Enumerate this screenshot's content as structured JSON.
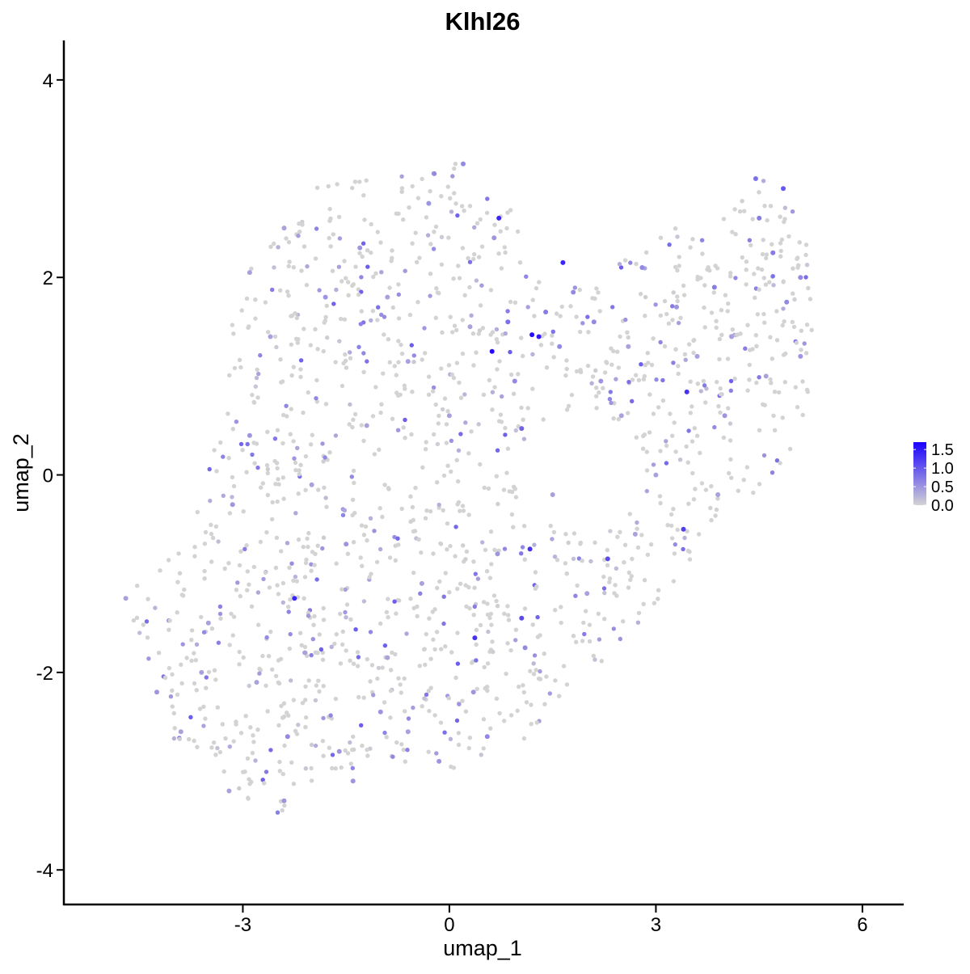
{
  "chart_data": {
    "type": "scatter",
    "title": "Klhl26",
    "xlabel": "umap_1",
    "ylabel": "umap_2",
    "xlim": [
      -5.6,
      6.6
    ],
    "ylim": [
      -4.35,
      4.4
    ],
    "xticks": [
      -3,
      0,
      3,
      6
    ],
    "xtick_labels": [
      "-3",
      "0",
      "3",
      "6"
    ],
    "yticks": [
      -4,
      -2,
      0,
      2,
      4
    ],
    "ytick_labels": [
      "-4",
      "-2",
      "0",
      "2",
      "4"
    ],
    "grid": false,
    "legend": {
      "placement": "right",
      "type": "colorbar",
      "title": "",
      "labels": [
        "1.5",
        "1.0",
        "0.5",
        "0.0"
      ],
      "values": [
        1.5,
        1.0,
        0.5,
        0.0
      ],
      "range": [
        0.0,
        1.7
      ],
      "color_low": "#d3d3d3",
      "color_high": "#1a00ff"
    },
    "points": [
      [
        0.2,
        3.15,
        0.6
      ],
      [
        -0.22,
        3.05,
        0.6
      ],
      [
        0.72,
        2.6,
        1.4
      ],
      [
        1.65,
        2.15,
        1.4
      ],
      [
        0.62,
        1.25,
        1.6
      ],
      [
        1.2,
        1.42,
        1.6
      ],
      [
        1.3,
        1.4,
        1.5
      ],
      [
        3.45,
        0.84,
        1.3
      ],
      [
        3.4,
        -0.55,
        1.2
      ],
      [
        1.17,
        -0.75,
        1.3
      ],
      [
        -2.25,
        -1.25,
        1.4
      ],
      [
        0.37,
        -1.65,
        1.3
      ],
      [
        1.05,
        -1.45,
        1.1
      ],
      [
        2.3,
        -0.85,
        1.1
      ],
      [
        4.45,
        3.0,
        0.8
      ],
      [
        4.85,
        2.9,
        1.0
      ],
      [
        4.7,
        2.25,
        0.7
      ],
      [
        5.1,
        2.0,
        0.6
      ],
      [
        4.9,
        1.75,
        0.6
      ],
      [
        4.5,
        2.6,
        0.7
      ],
      [
        3.85,
        1.9,
        0.7
      ],
      [
        2.1,
        1.55,
        0.6
      ],
      [
        0.85,
        1.55,
        0.8
      ],
      [
        0.95,
        0.95,
        0.6
      ],
      [
        1.05,
        0.47,
        0.9
      ],
      [
        -3.15,
        -0.3,
        0.5
      ],
      [
        -2.9,
        0.4,
        0.5
      ],
      [
        -2.35,
        -2.65,
        0.6
      ],
      [
        -2.4,
        -3.3,
        0.5
      ],
      [
        -1.4,
        -3.1,
        0.5
      ],
      [
        -4.7,
        -1.25,
        0.4
      ],
      [
        -4.25,
        -2.2,
        0.5
      ],
      [
        -3.2,
        -3.2,
        0.4
      ],
      [
        -0.15,
        -2.9,
        0.5
      ],
      [
        0.55,
        -2.65,
        0.6
      ],
      [
        1.4,
        1.65,
        0.7
      ],
      [
        1.6,
        1.3,
        0.6
      ],
      [
        1.8,
        1.85,
        0.6
      ],
      [
        2.8,
        2.1,
        0.6
      ],
      [
        3.3,
        1.7,
        0.5
      ],
      [
        -1.8,
        1.8,
        0.5
      ],
      [
        -2.4,
        2.5,
        0.4
      ],
      [
        -0.3,
        2.75,
        0.5
      ],
      [
        0.65,
        2.4,
        0.5
      ],
      [
        -0.6,
        1.15,
        0.4
      ],
      [
        0.0,
        0.6,
        0.4
      ],
      [
        -1.2,
        0.5,
        0.4
      ],
      [
        -2.0,
        -0.1,
        0.4
      ],
      [
        -1.5,
        -0.7,
        0.5
      ],
      [
        -0.4,
        -1.1,
        0.4
      ],
      [
        0.7,
        -0.8,
        0.5
      ],
      [
        1.5,
        -0.2,
        0.4
      ],
      [
        2.5,
        0.6,
        0.4
      ],
      [
        3.0,
        0.0,
        0.4
      ],
      [
        4.0,
        0.6,
        0.5
      ],
      [
        4.6,
        1.0,
        0.4
      ],
      [
        5.1,
        1.2,
        0.5
      ],
      [
        4.1,
        1.4,
        0.4
      ],
      [
        -3.5,
        -1.5,
        0.4
      ],
      [
        -2.8,
        -2.1,
        0.4
      ],
      [
        -1.0,
        -2.4,
        0.5
      ],
      [
        -0.9,
        -1.85,
        0.4
      ],
      [
        0.35,
        -2.2,
        0.5
      ],
      [
        1.1,
        -1.75,
        0.6
      ],
      [
        2.0,
        -1.2,
        0.4
      ],
      [
        -3.9,
        -2.6,
        0.4
      ],
      [
        -3.6,
        -2.0,
        0.4
      ],
      [
        -2.1,
        -1.8,
        0.4
      ],
      [
        -1.6,
        -2.8,
        0.5
      ],
      [
        -0.6,
        -2.6,
        0.4
      ],
      [
        -2.6,
        1.4,
        0.4
      ],
      [
        -2.9,
        2.05,
        0.4
      ],
      [
        -1.3,
        2.3,
        0.5
      ],
      [
        -0.9,
        1.8,
        0.4
      ],
      [
        0.3,
        1.5,
        0.4
      ],
      [
        2.2,
        0.95,
        0.5
      ],
      [
        2.6,
        1.3,
        0.4
      ],
      [
        3.6,
        1.2,
        0.4
      ],
      [
        3.9,
        -0.2,
        0.4
      ],
      [
        2.7,
        -0.6,
        0.4
      ]
    ]
  }
}
